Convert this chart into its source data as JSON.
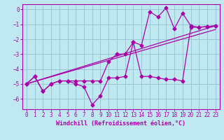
{
  "background_color": "#c0e8f0",
  "grid_color": "#98c8d8",
  "line_color": "#aa00aa",
  "xlabel": "Windchill (Refroidissement éolien,°C)",
  "xlim": [
    -0.5,
    23.5
  ],
  "ylim": [
    -6.7,
    0.35
  ],
  "yticks": [
    0,
    -1,
    -2,
    -3,
    -4,
    -5,
    -6
  ],
  "xticks": [
    0,
    1,
    2,
    3,
    4,
    5,
    6,
    7,
    8,
    9,
    10,
    11,
    12,
    13,
    14,
    15,
    16,
    17,
    18,
    19,
    20,
    21,
    22,
    23
  ],
  "series1_x": [
    0,
    1,
    2,
    3,
    4,
    5,
    6,
    7,
    8,
    9,
    10,
    11,
    12,
    13,
    14,
    15,
    16,
    17,
    18,
    19,
    20,
    21,
    22,
    23
  ],
  "series1_y": [
    -5.0,
    -4.5,
    -5.5,
    -5.0,
    -4.8,
    -4.8,
    -5.0,
    -5.2,
    -6.4,
    -5.8,
    -4.6,
    -4.6,
    -4.5,
    -2.2,
    -4.5,
    -4.5,
    -4.6,
    -4.7,
    -4.7,
    -4.8,
    -1.2,
    -1.2,
    -1.15,
    -1.1
  ],
  "series2_x": [
    0,
    1,
    2,
    3,
    4,
    5,
    6,
    7,
    8,
    9,
    10,
    11,
    12,
    13,
    14,
    15,
    16,
    17,
    18,
    19,
    20,
    21,
    22,
    23
  ],
  "series2_y": [
    -5.0,
    -4.5,
    -5.5,
    -5.0,
    -4.8,
    -4.8,
    -4.8,
    -4.8,
    -4.8,
    -4.8,
    -3.5,
    -3.0,
    -3.0,
    -2.2,
    -2.4,
    -0.15,
    -0.5,
    0.1,
    -1.3,
    -0.25,
    -1.1,
    -1.2,
    -1.15,
    -1.1
  ],
  "series3_x": [
    0,
    23
  ],
  "series3_y": [
    -5.0,
    -1.1
  ],
  "series4_x": [
    0,
    23
  ],
  "series4_y": [
    -5.0,
    -1.1
  ],
  "series3_mid_x": [
    10
  ],
  "series3_mid_y": [
    -3.3
  ],
  "series4_mid_x": [
    10
  ],
  "series4_mid_y": [
    -2.8
  ]
}
